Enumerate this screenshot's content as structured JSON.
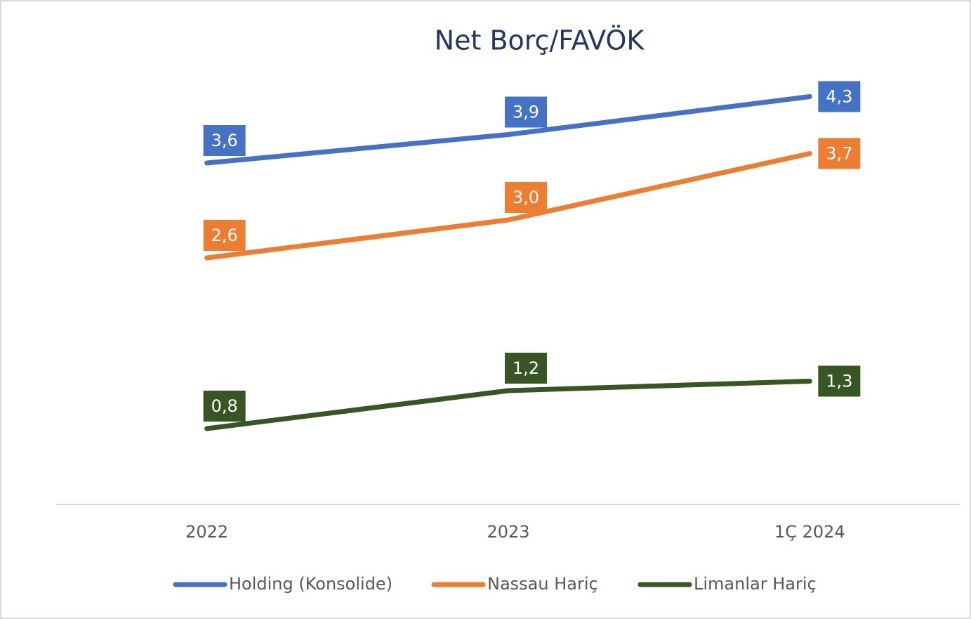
{
  "chart_data": {
    "type": "line",
    "title": "Net Borç/FAVÖK",
    "categories": [
      "2022",
      "2023",
      "1Ç 2024"
    ],
    "series": [
      {
        "name": "Holding (Konsolide)",
        "color": "#4472c4",
        "values": [
          3.6,
          3.9,
          4.3
        ],
        "value_labels": [
          "3,6",
          "3,9",
          "4,3"
        ]
      },
      {
        "name": "Nassau Hariç",
        "color": "#ed7d31",
        "values": [
          2.6,
          3.0,
          3.7
        ],
        "value_labels": [
          "2,6",
          "3,0",
          "3,7"
        ]
      },
      {
        "name": "Limanlar Hariç",
        "color": "#375623",
        "values": [
          0.8,
          1.2,
          1.3
        ],
        "value_labels": [
          "0,8",
          "1,2",
          "1,3"
        ]
      }
    ],
    "ylim": [
      0,
      5
    ],
    "legend": "bottom"
  }
}
